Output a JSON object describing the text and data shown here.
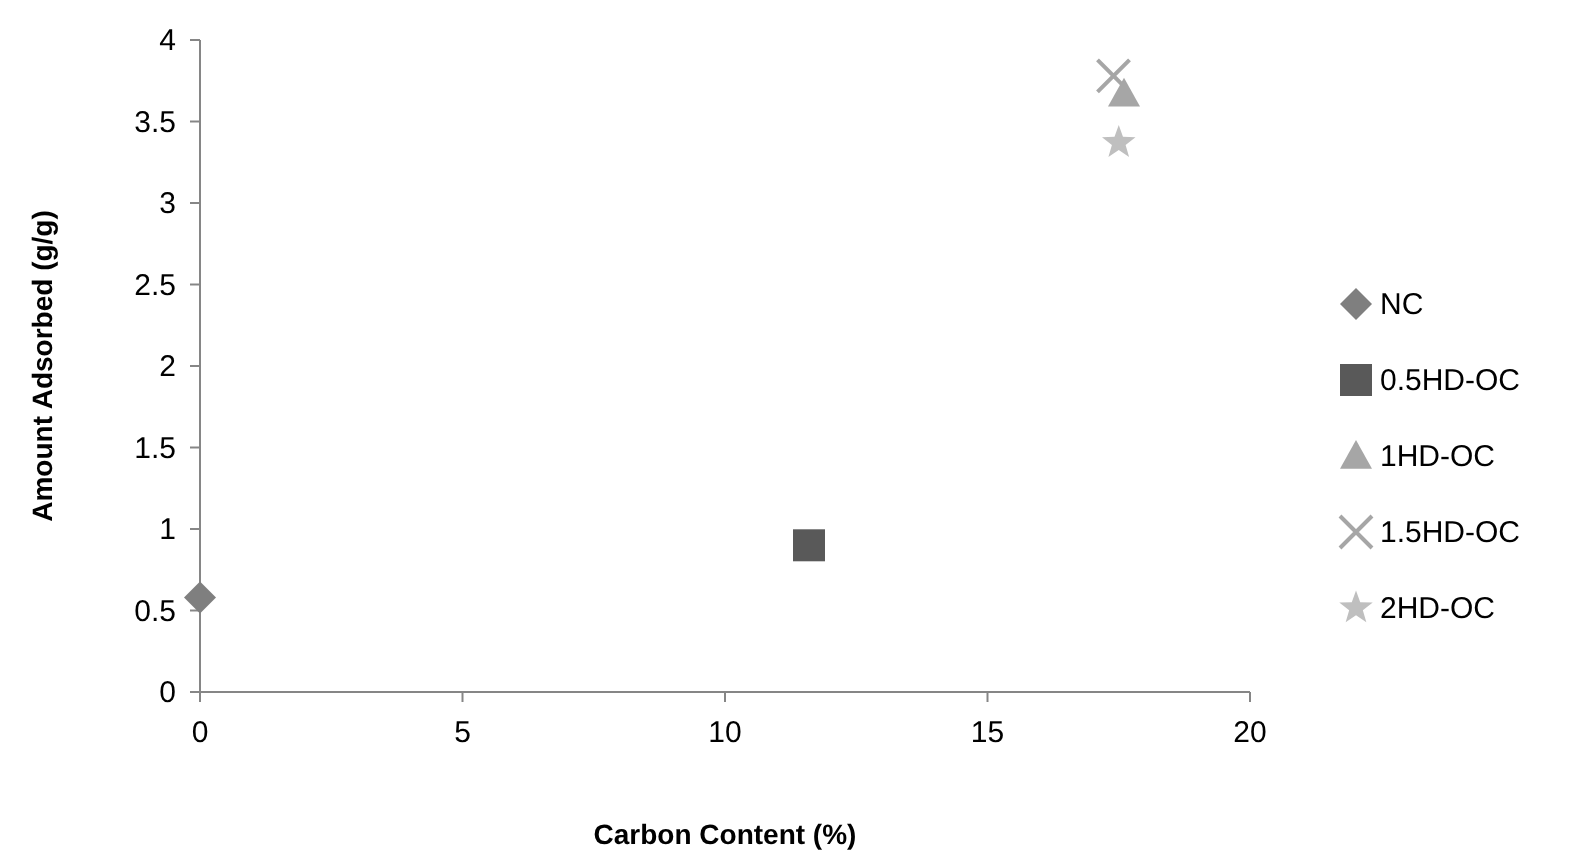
{
  "chart_data": {
    "type": "scatter",
    "xlabel": "Carbon Content (%)",
    "ylabel": "Amount Adsorbed (g/g)",
    "xlim": [
      0,
      20
    ],
    "xticks": [
      0,
      5,
      10,
      15,
      20
    ],
    "ylim": [
      0,
      4
    ],
    "yticks": [
      0,
      0.5,
      1,
      1.5,
      2,
      2.5,
      3,
      3.5,
      4
    ],
    "grid": false,
    "legend": "right",
    "series": [
      {
        "name": "NC",
        "color": "#7f7f7f",
        "marker": "diamond",
        "x": [
          0
        ],
        "values": [
          0.58
        ]
      },
      {
        "name": "0.5HD-OC",
        "color": "#595959",
        "marker": "square",
        "x": [
          11.6
        ],
        "values": [
          0.9
        ]
      },
      {
        "name": "1HD-OC",
        "color": "#a6a6a6",
        "marker": "triangle",
        "x": [
          17.6
        ],
        "values": [
          3.67
        ]
      },
      {
        "name": "1.5HD-OC",
        "color": "#a6a6a6",
        "marker": "cross",
        "x": [
          17.4
        ],
        "values": [
          3.78
        ]
      },
      {
        "name": "2HD-OC",
        "color": "#bfbfbf",
        "marker": "star",
        "x": [
          17.5
        ],
        "values": [
          3.37
        ]
      }
    ]
  }
}
